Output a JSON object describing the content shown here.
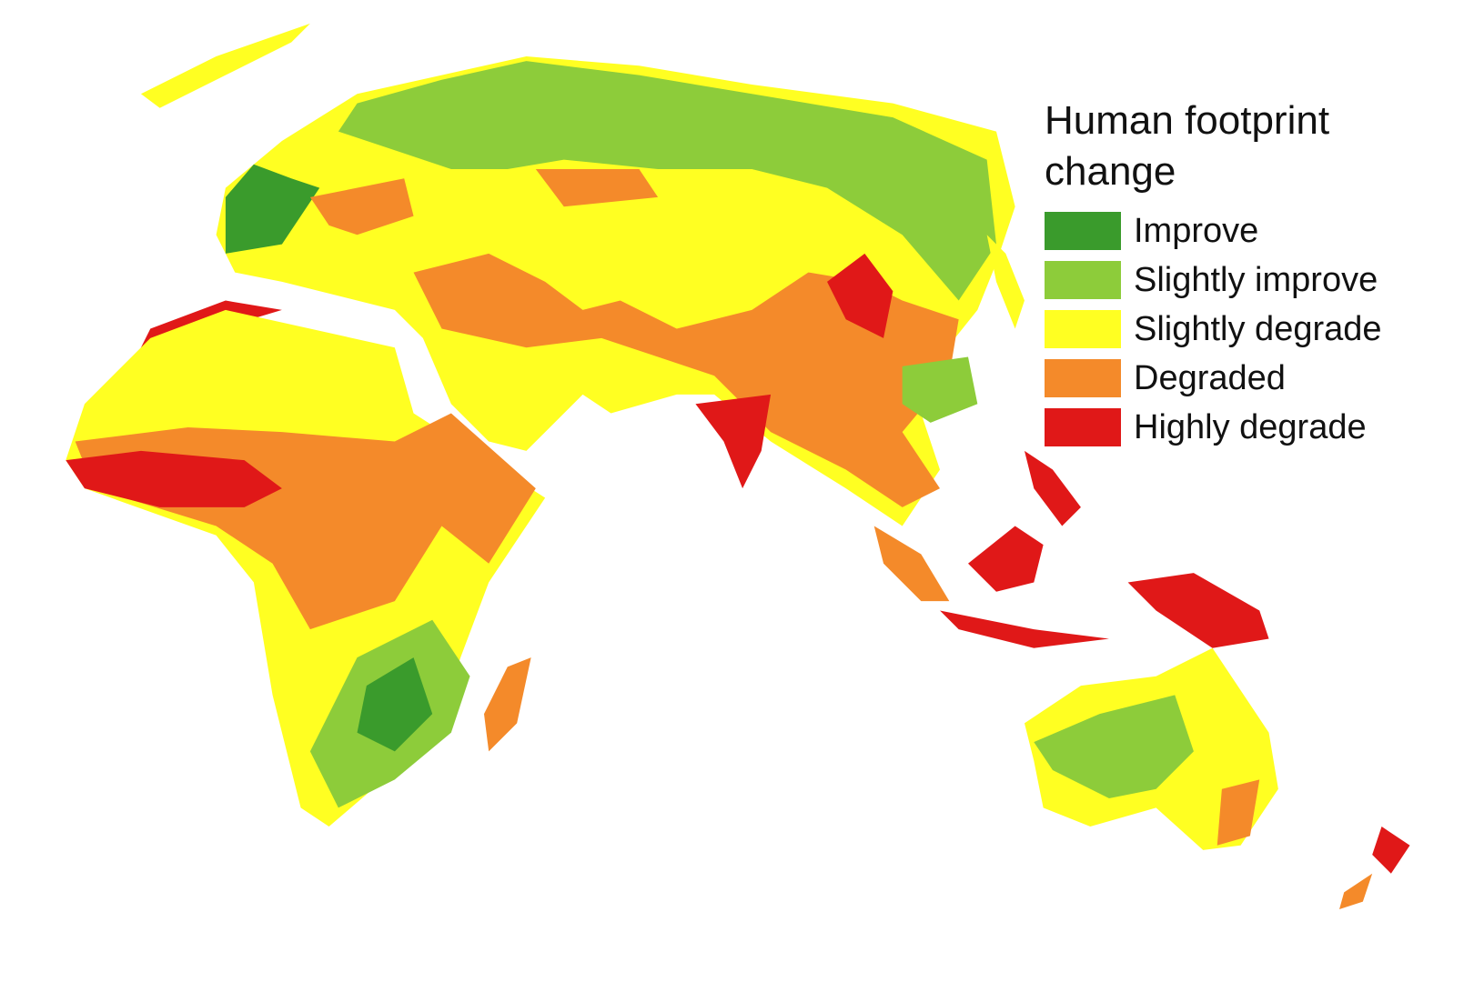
{
  "legend": {
    "title": "Human footprint change",
    "items": [
      {
        "label": "Improve",
        "color": "#3a9b2c"
      },
      {
        "label": "Slightly improve",
        "color": "#8dcc3a"
      },
      {
        "label": "Slightly degrade",
        "color": "#ffff22"
      },
      {
        "label": "Degraded",
        "color": "#f48a2a"
      },
      {
        "label": "Highly degrade",
        "color": "#e01818"
      }
    ]
  }
}
